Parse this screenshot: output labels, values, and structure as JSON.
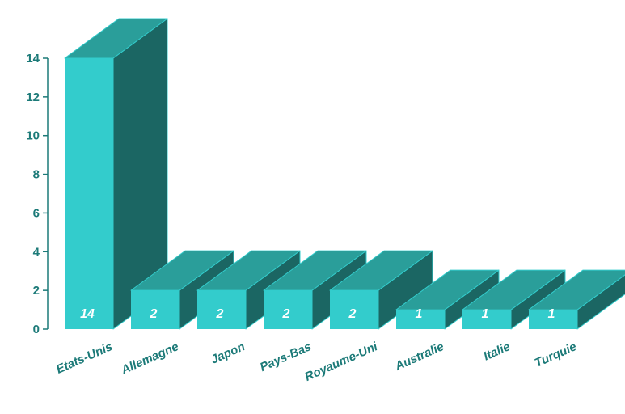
{
  "chart_data": {
    "type": "bar",
    "categories": [
      "Etats-Unis",
      "Allemagne",
      "Japon",
      "Pays-Bas",
      "Royaume-Uni",
      "Australie",
      "Italie",
      "Turquie"
    ],
    "values": [
      14,
      2,
      2,
      2,
      2,
      1,
      1,
      1
    ],
    "data_labels": [
      "14",
      "2",
      "2",
      "2",
      "2",
      "1",
      "1",
      "1"
    ],
    "y_ticks": [
      "0",
      "2",
      "4",
      "6",
      "8",
      "10",
      "12",
      "14"
    ],
    "ylim": [
      0,
      14
    ],
    "title": "",
    "xlabel": "",
    "ylabel": "",
    "grid": false,
    "legend": "none",
    "style": "3d-bars",
    "colors": {
      "front": "#33cccc",
      "top": "#2a9e9a",
      "side": "#1b6663",
      "axis": "#1c7a78",
      "data_label": "#ffffff"
    }
  }
}
